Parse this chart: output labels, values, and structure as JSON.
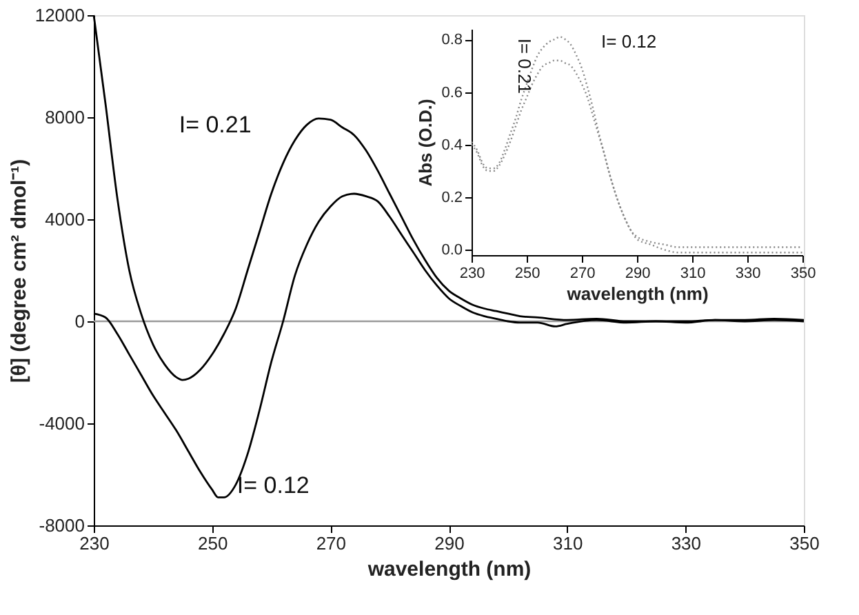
{
  "chart_data": [
    {
      "type": "line",
      "xlabel": "wavelength (nm)",
      "ylabel": "[θ] (degree cm² dmol⁻¹)",
      "xlim": [
        230,
        350
      ],
      "xticks": [
        230,
        250,
        270,
        290,
        310,
        330,
        350
      ],
      "ylim": [
        -8000,
        12000
      ],
      "yticks": [
        -8000,
        -4000,
        0,
        4000,
        8000,
        12000
      ],
      "line_style": "solid",
      "ref_lines": [
        {
          "axis": "y",
          "value": 0,
          "color": "#999999"
        }
      ],
      "series": [
        {
          "name": "I= 0.21",
          "color": "#000000",
          "x": [
            230,
            232,
            234,
            236,
            238,
            240,
            242,
            244,
            245,
            246,
            248,
            250,
            252,
            254,
            256,
            258,
            260,
            262,
            264,
            266,
            268,
            270,
            272,
            274,
            276,
            278,
            280,
            282,
            284,
            286,
            288,
            290,
            292,
            294,
            296,
            298,
            300,
            302,
            305,
            310,
            315,
            320,
            325,
            330,
            335,
            340,
            345,
            350
          ],
          "values": [
            12000,
            8500,
            4800,
            2000,
            300,
            -900,
            -1700,
            -2200,
            -2300,
            -2250,
            -1900,
            -1300,
            -500,
            500,
            2000,
            3500,
            5000,
            6200,
            7100,
            7700,
            7950,
            7900,
            7600,
            7300,
            6700,
            5900,
            5000,
            4100,
            3200,
            2400,
            1700,
            1200,
            900,
            650,
            500,
            400,
            300,
            200,
            150,
            50,
            100,
            0,
            0,
            0,
            50,
            50,
            100,
            50
          ]
        },
        {
          "name": "I= 0.12",
          "color": "#000000",
          "x": [
            230,
            232,
            234,
            236,
            238,
            240,
            242,
            244,
            246,
            248,
            250,
            251,
            252,
            254,
            256,
            258,
            260,
            262,
            264,
            266,
            268,
            270,
            272,
            274,
            276,
            278,
            280,
            282,
            284,
            286,
            288,
            290,
            292,
            294,
            296,
            298,
            300,
            302,
            305,
            308,
            310,
            315,
            320,
            325,
            330,
            335,
            340,
            345,
            350
          ],
          "values": [
            300,
            150,
            -500,
            -1300,
            -2100,
            -2900,
            -3600,
            -4300,
            -5100,
            -5900,
            -6600,
            -6900,
            -6900,
            -6400,
            -5200,
            -3500,
            -1600,
            0,
            1800,
            3000,
            3900,
            4500,
            4900,
            5000,
            4900,
            4700,
            4100,
            3400,
            2700,
            2000,
            1400,
            900,
            600,
            350,
            200,
            100,
            0,
            -50,
            -50,
            -200,
            -100,
            50,
            -50,
            0,
            -50,
            50,
            0,
            50,
            0
          ]
        }
      ]
    },
    {
      "type": "line",
      "xlabel": "wavelength (nm)",
      "ylabel": "Abs (O.D.)",
      "xlim": [
        230,
        350
      ],
      "xticks": [
        230,
        250,
        270,
        290,
        310,
        330,
        350
      ],
      "ylim": [
        -0.02,
        0.84
      ],
      "yticks": [
        {
          "value": 0,
          "label": "0.0"
        },
        0.2,
        0.4,
        0.6,
        0.8
      ],
      "line_style": "dotted",
      "series": [
        {
          "name": "I= 0.12",
          "color": "#888888",
          "x": [
            230,
            232,
            234,
            236,
            238,
            240,
            242,
            244,
            246,
            248,
            250,
            252,
            254,
            256,
            258,
            260,
            262,
            264,
            266,
            268,
            270,
            272,
            274,
            276,
            278,
            280,
            282,
            284,
            286,
            288,
            290,
            295,
            300,
            305,
            310,
            320,
            330,
            340,
            350
          ],
          "values": [
            0.41,
            0.38,
            0.33,
            0.31,
            0.31,
            0.33,
            0.38,
            0.44,
            0.5,
            0.57,
            0.63,
            0.69,
            0.74,
            0.77,
            0.79,
            0.8,
            0.81,
            0.8,
            0.78,
            0.74,
            0.69,
            0.62,
            0.54,
            0.45,
            0.37,
            0.29,
            0.22,
            0.16,
            0.11,
            0.07,
            0.05,
            0.03,
            0.02,
            0.01,
            0.01,
            0.01,
            0.01,
            0.01,
            0.01
          ]
        },
        {
          "name": "I= 0.21",
          "color": "#888888",
          "x": [
            230,
            232,
            234,
            236,
            238,
            240,
            242,
            244,
            246,
            248,
            250,
            252,
            254,
            256,
            258,
            260,
            262,
            264,
            266,
            268,
            270,
            272,
            274,
            276,
            278,
            280,
            282,
            284,
            286,
            288,
            290,
            295,
            300,
            305,
            310,
            320,
            330,
            340,
            350
          ],
          "values": [
            0.4,
            0.37,
            0.32,
            0.3,
            0.3,
            0.32,
            0.36,
            0.41,
            0.47,
            0.53,
            0.58,
            0.63,
            0.67,
            0.7,
            0.71,
            0.72,
            0.72,
            0.71,
            0.7,
            0.67,
            0.63,
            0.58,
            0.51,
            0.44,
            0.37,
            0.29,
            0.22,
            0.16,
            0.11,
            0.07,
            0.04,
            0.02,
            0.0,
            -0.01,
            -0.01,
            -0.01,
            -0.01,
            -0.01,
            -0.01
          ]
        }
      ]
    }
  ]
}
